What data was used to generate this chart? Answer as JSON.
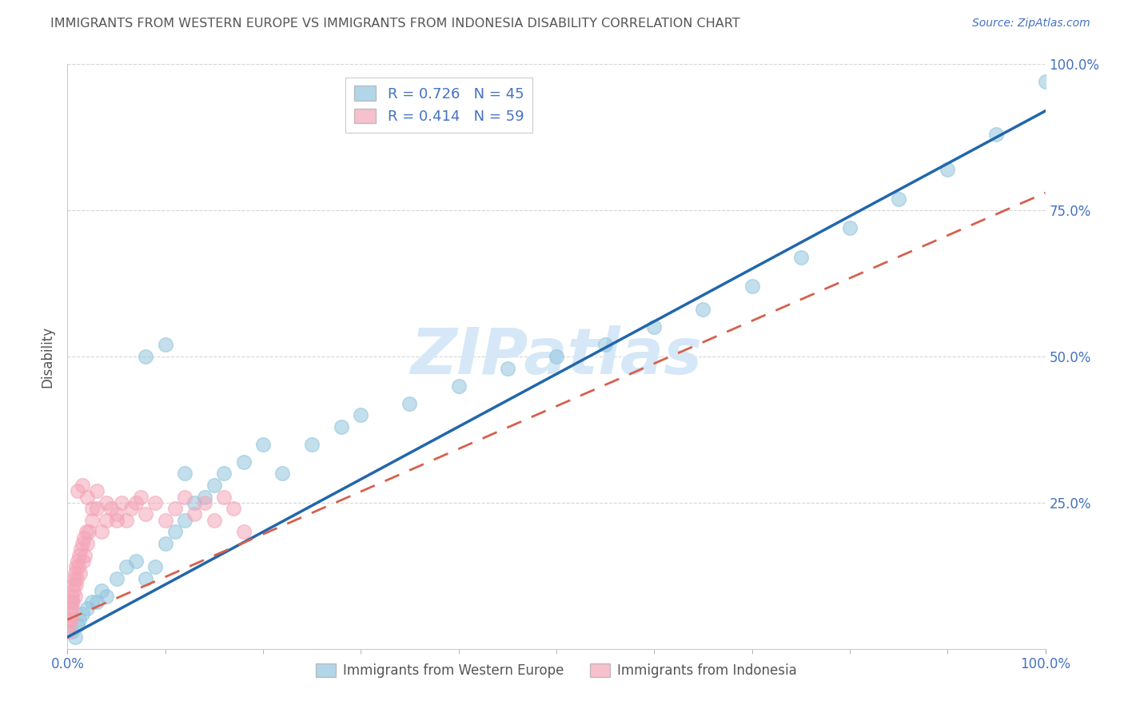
{
  "title": "IMMIGRANTS FROM WESTERN EUROPE VS IMMIGRANTS FROM INDONESIA DISABILITY CORRELATION CHART",
  "source": "Source: ZipAtlas.com",
  "ylabel": "Disability",
  "xlim": [
    0,
    100
  ],
  "ylim": [
    0,
    100
  ],
  "blue_R": 0.726,
  "blue_N": 45,
  "pink_R": 0.414,
  "pink_N": 59,
  "blue_color": "#92c5de",
  "pink_color": "#f4a6b8",
  "blue_line_color": "#2166ac",
  "pink_line_color": "#d6604d",
  "watermark": "ZIPatlas",
  "watermark_color": "#d6e8f7",
  "axis_label_color": "#4472c4",
  "title_color": "#555555",
  "grid_color": "#cccccc",
  "blue_line_x0": 0,
  "blue_line_y0": 2,
  "blue_line_x1": 100,
  "blue_line_y1": 92,
  "pink_line_x0": 0,
  "pink_line_y0": 5,
  "pink_line_x1": 100,
  "pink_line_y1": 78,
  "blue_points_x": [
    0.5,
    0.8,
    1.0,
    1.2,
    1.5,
    2.0,
    2.5,
    3.0,
    3.5,
    4.0,
    5.0,
    6.0,
    7.0,
    8.0,
    9.0,
    10.0,
    11.0,
    12.0,
    13.0,
    14.0,
    15.0,
    16.0,
    18.0,
    20.0,
    22.0,
    25.0,
    28.0,
    30.0,
    35.0,
    40.0,
    45.0,
    50.0,
    55.0,
    60.0,
    65.0,
    70.0,
    75.0,
    80.0,
    85.0,
    90.0,
    95.0,
    100.0,
    8.0,
    10.0,
    12.0
  ],
  "blue_points_y": [
    3,
    2,
    4,
    5,
    6,
    7,
    8,
    8,
    10,
    9,
    12,
    14,
    15,
    12,
    14,
    18,
    20,
    22,
    25,
    26,
    28,
    30,
    32,
    35,
    30,
    35,
    38,
    40,
    42,
    45,
    48,
    50,
    52,
    55,
    58,
    62,
    67,
    72,
    77,
    82,
    88,
    97,
    50,
    52,
    30
  ],
  "pink_points_x": [
    0.1,
    0.15,
    0.2,
    0.25,
    0.3,
    0.35,
    0.4,
    0.45,
    0.5,
    0.55,
    0.6,
    0.65,
    0.7,
    0.75,
    0.8,
    0.85,
    0.9,
    0.95,
    1.0,
    1.1,
    1.2,
    1.3,
    1.4,
    1.5,
    1.6,
    1.7,
    1.8,
    1.9,
    2.0,
    2.2,
    2.5,
    3.0,
    3.5,
    4.0,
    4.5,
    5.0,
    5.5,
    6.0,
    6.5,
    7.0,
    7.5,
    8.0,
    9.0,
    10.0,
    11.0,
    12.0,
    13.0,
    14.0,
    15.0,
    16.0,
    17.0,
    18.0,
    1.0,
    1.5,
    2.0,
    2.5,
    3.0,
    4.0,
    5.0
  ],
  "pink_points_y": [
    4,
    3,
    5,
    6,
    7,
    5,
    8,
    7,
    9,
    8,
    11,
    10,
    12,
    9,
    13,
    11,
    14,
    12,
    15,
    14,
    16,
    13,
    17,
    18,
    15,
    19,
    16,
    20,
    18,
    20,
    22,
    24,
    20,
    22,
    24,
    23,
    25,
    22,
    24,
    25,
    26,
    23,
    25,
    22,
    24,
    26,
    23,
    25,
    22,
    26,
    24,
    20,
    27,
    28,
    26,
    24,
    27,
    25,
    22
  ]
}
